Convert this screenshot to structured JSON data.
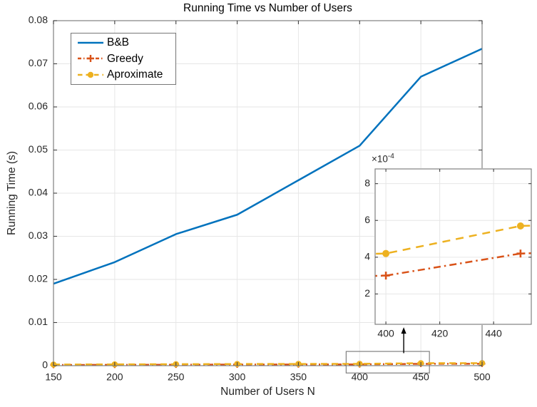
{
  "colors": {
    "series_bb": "#0072BD",
    "series_greedy": "#D95319",
    "series_approx": "#EDB120",
    "grid": "#E6E6E6",
    "axis_box": "#808080",
    "tick": "#404040",
    "tick_label": "#262626",
    "annotation": "#000000"
  },
  "chart_data": {
    "type": "line",
    "title": "Running Time vs Number of Users",
    "xlabel": "Number of Users N",
    "ylabel": "Running Time (s)",
    "grid": true,
    "x": [
      150,
      200,
      250,
      300,
      350,
      400,
      450,
      500
    ],
    "xlim": [
      150,
      500
    ],
    "ylim": [
      0,
      0.08
    ],
    "xticks": [
      150,
      200,
      250,
      300,
      350,
      400,
      450,
      500
    ],
    "xtick_labels": [
      "150",
      "200",
      "250",
      "300",
      "350",
      "400",
      "450",
      "500"
    ],
    "yticks": [
      0,
      0.01,
      0.02,
      0.03,
      0.04,
      0.05,
      0.06,
      0.07,
      0.08
    ],
    "ytick_labels": [
      "0",
      "0.01",
      "0.02",
      "0.03",
      "0.04",
      "0.05",
      "0.06",
      "0.07",
      "0.08"
    ],
    "legend": {
      "position": "top-left"
    },
    "series": [
      {
        "name": "B&B",
        "color": "#0072BD",
        "line_style": "solid",
        "marker": "none",
        "values": [
          0.019,
          0.024,
          0.0305,
          0.035,
          0.043,
          0.051,
          0.067,
          0.0735
        ]
      },
      {
        "name": "Greedy",
        "color": "#D95319",
        "line_style": "dash-dot",
        "marker": "plus",
        "values": [
          0.00016,
          0.00019,
          0.00022,
          0.00025,
          0.00028,
          0.0003,
          0.00042,
          0.00044
        ]
      },
      {
        "name": "Aproximate",
        "color": "#EDB120",
        "line_style": "dashed",
        "marker": "circle",
        "values": [
          0.00026,
          0.0003,
          0.00034,
          0.00038,
          0.0004,
          0.00042,
          0.00057,
          0.00059
        ]
      }
    ],
    "inset": {
      "xlim": [
        396,
        454
      ],
      "ylim": [
        3.5e-05,
        0.00088
      ],
      "xticks": [
        400,
        420,
        440
      ],
      "xtick_labels": [
        "400",
        "420",
        "440"
      ],
      "yticks": [
        0.0002,
        0.0004,
        0.0006,
        0.0008
      ],
      "ytick_labels": [
        "2",
        "4",
        "6",
        "8"
      ],
      "multiplier": {
        "base": "×10",
        "exponent": "-4"
      },
      "series": [
        "Greedy",
        "Aproximate"
      ]
    },
    "annotations": {
      "zoom_rect": {
        "x": [
          389,
          457
        ],
        "y": [
          -0.0017,
          0.0033
        ]
      },
      "arrow": {
        "x": 436,
        "y_from": 0.0029,
        "y_to": 0.0089
      }
    }
  }
}
